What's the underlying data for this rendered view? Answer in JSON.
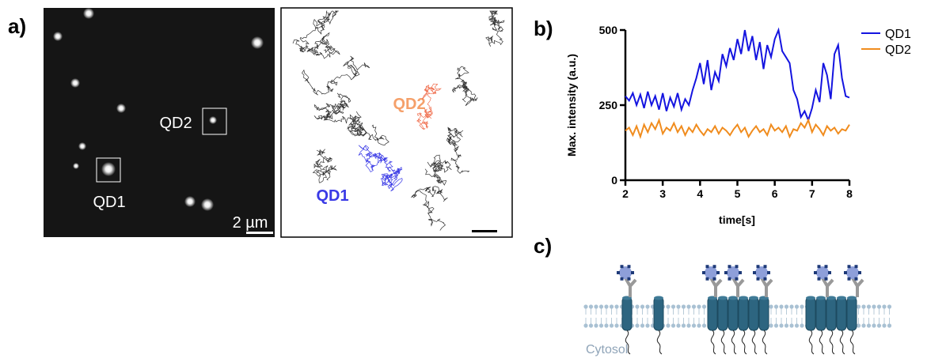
{
  "panel_labels": [
    "a)",
    "b)",
    "c)"
  ],
  "microscopy": {
    "label_qd2": "QD2",
    "label_qd1": "QD1",
    "scale_bar": "2 µm"
  },
  "tracks": {
    "label_qd2": "QD2",
    "label_qd1": "QD1"
  },
  "chart_data": {
    "type": "line",
    "xlabel": "time[s]",
    "ylabel": "Max. intensity (a.u.)",
    "x": [
      2.0,
      2.1,
      2.2,
      2.3,
      2.4,
      2.5,
      2.6,
      2.7,
      2.8,
      2.9,
      3.0,
      3.1,
      3.2,
      3.3,
      3.4,
      3.5,
      3.6,
      3.7,
      3.8,
      3.9,
      4.0,
      4.1,
      4.2,
      4.3,
      4.4,
      4.5,
      4.6,
      4.7,
      4.8,
      4.9,
      5.0,
      5.1,
      5.2,
      5.3,
      5.4,
      5.5,
      5.6,
      5.7,
      5.8,
      5.9,
      6.0,
      6.1,
      6.2,
      6.3,
      6.4,
      6.5,
      6.6,
      6.7,
      6.8,
      6.9,
      7.0,
      7.1,
      7.2,
      7.3,
      7.4,
      7.5,
      7.6,
      7.7,
      7.8,
      7.9,
      8.0
    ],
    "series": [
      {
        "name": "QD1",
        "color": "#1414e0",
        "values": [
          280,
          265,
          290,
          250,
          285,
          240,
          295,
          250,
          280,
          235,
          290,
          230,
          275,
          245,
          290,
          235,
          270,
          250,
          300,
          340,
          390,
          320,
          400,
          300,
          360,
          330,
          420,
          380,
          440,
          400,
          470,
          420,
          500,
          430,
          480,
          400,
          460,
          370,
          450,
          410,
          470,
          500,
          430,
          410,
          390,
          300,
          270,
          210,
          230,
          200,
          240,
          300,
          260,
          390,
          350,
          270,
          420,
          450,
          340,
          280,
          275
        ]
      },
      {
        "name": "QD2",
        "color": "#f08c1e",
        "values": [
          165,
          175,
          150,
          180,
          145,
          185,
          160,
          190,
          170,
          200,
          155,
          175,
          165,
          190,
          160,
          180,
          150,
          175,
          160,
          185,
          165,
          150,
          170,
          160,
          180,
          155,
          175,
          165,
          150,
          170,
          185,
          160,
          175,
          145,
          165,
          180,
          160,
          170,
          150,
          185,
          165,
          175,
          160,
          180,
          145,
          170,
          165,
          190,
          175,
          200,
          160,
          185,
          170,
          150,
          180,
          165,
          175,
          155,
          170,
          165,
          185
        ]
      }
    ],
    "xlim": [
      2,
      8
    ],
    "ylim": [
      0,
      500
    ],
    "xticks": [
      2,
      3,
      4,
      5,
      6,
      7,
      8
    ],
    "yticks": [
      0,
      250,
      500
    ]
  },
  "membrane": {
    "label": "Cytosol"
  }
}
